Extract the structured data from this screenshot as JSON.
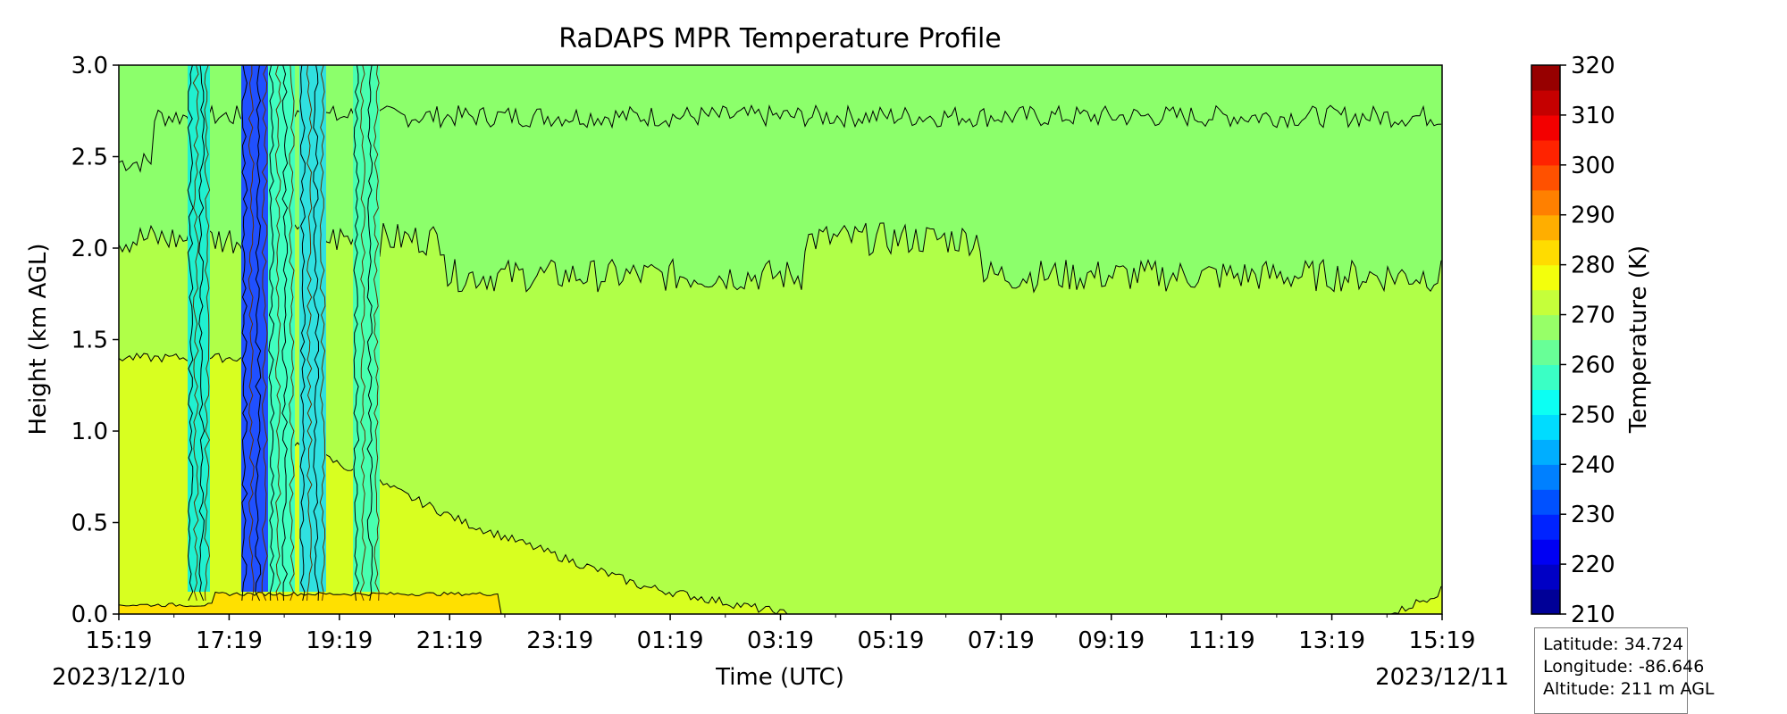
{
  "chart_data": {
    "type": "heatmap",
    "title": "RaDAPS MPR Temperature Profile",
    "xlabel": "Time (UTC)",
    "ylabel": "Height (km AGL)",
    "x_ticks": [
      "15:19",
      "17:19",
      "19:19",
      "21:19",
      "23:19",
      "01:19",
      "03:19",
      "05:19",
      "07:19",
      "09:19",
      "11:19",
      "13:19",
      "15:19"
    ],
    "x_date_left": "2023/12/10",
    "x_date_right": "2023/12/11",
    "xlim": [
      "2023-12-10 15:19",
      "2023-12-11 15:19"
    ],
    "ylim": [
      0.0,
      3.0
    ],
    "y_ticks": [
      "0.0",
      "0.5",
      "1.0",
      "1.5",
      "2.0",
      "2.5",
      "3.0"
    ],
    "y_tick_values": [
      0.0,
      0.5,
      1.0,
      1.5,
      2.0,
      2.5,
      3.0
    ],
    "colorbar": {
      "label": "Temperature (K)",
      "range": [
        210,
        320
      ],
      "tick_labels": [
        "210",
        "220",
        "230",
        "240",
        "250",
        "260",
        "270",
        "280",
        "290",
        "300",
        "310",
        "320"
      ],
      "tick_values": [
        210,
        220,
        230,
        240,
        250,
        260,
        270,
        280,
        290,
        300,
        310,
        320
      ],
      "level_step": 5,
      "colormap": "jet"
    },
    "bands": [
      {
        "temperature_range": [
          280,
          285
        ],
        "color": "#ffe000",
        "approx_height_km": [
          0.0,
          0.1
        ]
      },
      {
        "temperature_range": [
          275,
          280
        ],
        "color": "#d8ff20",
        "approx_height_km": [
          0.1,
          1.6
        ]
      },
      {
        "temperature_range": [
          270,
          275
        ],
        "color": "#b0ff48",
        "approx_height_km": [
          1.6,
          2.0
        ]
      },
      {
        "temperature_range": [
          265,
          270
        ],
        "color": "#8cff6b",
        "approx_height_km": [
          2.0,
          2.7
        ]
      },
      {
        "temperature_range": [
          260,
          265
        ],
        "color": "#68ff8f",
        "approx_height_km": [
          2.7,
          3.0
        ]
      }
    ]
  },
  "info": {
    "latitude": "Latitude: 34.724",
    "longitude": "Longitude: -86.646",
    "altitude": "Altitude: 211 m AGL"
  }
}
